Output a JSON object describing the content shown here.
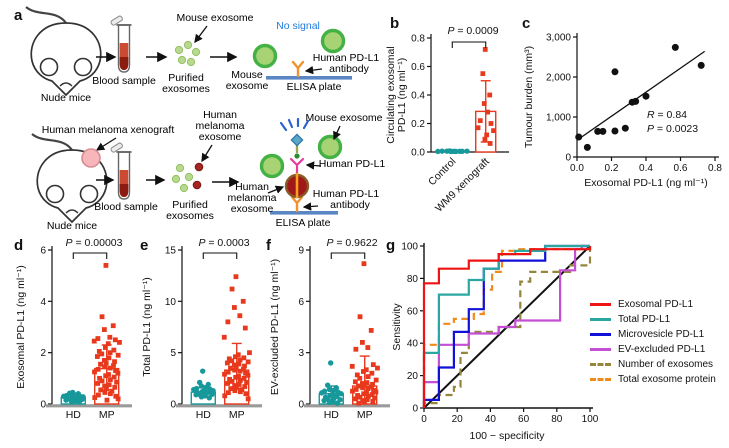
{
  "letters": {
    "a": "a",
    "b": "b",
    "c": "c",
    "d": "d",
    "e": "e",
    "f": "f",
    "g": "g"
  },
  "panel_a": {
    "r1_nude_mice": "Nude mice",
    "r1_blood": "Blood sample",
    "r1_purified_1": "Purified",
    "r1_purified_2": "exosomes",
    "r1_mouse_exo_ptr": "Mouse exosome",
    "r1_mouse_exo_1": "Mouse",
    "r1_mouse_exo_2": "exosome",
    "r1_no_signal": "No signal",
    "r1_ab_1": "Human PD-L1",
    "r1_ab_2": "antibody",
    "r1_elisa": "ELISA plate",
    "r2_xenograft": "Human melanoma xenograft",
    "r2_nude_mice": "Nude mice",
    "r2_blood": "Blood sample",
    "r2_purified_1": "Purified",
    "r2_purified_2": "exosomes",
    "r2_mel_ptr_1": "Human",
    "r2_mel_ptr_2": "melanoma",
    "r2_mel_ptr_3": "exosome",
    "r2_mouse_exo": "Mouse exosome",
    "r2_human_pdl1": "Human PD-L1",
    "r2_mel_1": "Human",
    "r2_mel_2": "melanoma",
    "r2_mel_3": "exosome",
    "r2_ab_1": "Human PD-L1",
    "r2_ab_2": "antibody",
    "r2_elisa": "ELISA plate",
    "colors": {
      "exosome_green_fill": "#a8d375",
      "exosome_green_ring": "#43b143",
      "small_exosome": "#b9da8e",
      "melanoma_exosome": "#a01818",
      "melanoma_ring": "#8a5a28",
      "tumor_pink": "#f6b6ba",
      "antibody_orange": "#f0922f",
      "antibody_pink": "#ea3b9a",
      "elisa_blue": "#5b86c4",
      "signal_blue": "#2a63cf",
      "no_signal_blue": "#1f7de0",
      "blood_red": "#cd4a32"
    }
  },
  "chart_data": [
    {
      "panel": "b",
      "type": "dot-bar",
      "p_label": "P = 0.0009",
      "ylabel_lines": [
        "Circulating exosomal",
        "PD-L1 (ng ml⁻¹)"
      ],
      "ylim": [
        0,
        0.8
      ],
      "yticks": [
        0,
        0.2,
        0.4,
        0.6,
        0.8
      ],
      "ytick_labels": [
        "0.0",
        "0.2",
        "0.4",
        "0.6",
        "0.8"
      ],
      "xtick_rotate": true,
      "groups": [
        {
          "label": "Control",
          "marker": "circle",
          "color": "#17989b",
          "bar": null,
          "values": [
            0.004,
            0.006,
            0.005,
            0.007,
            0.004,
            0.006,
            0.005,
            0.004,
            0.006,
            0.005,
            0.005
          ]
        },
        {
          "label": "WM9 xenograft",
          "marker": "square",
          "color": "#e8391d",
          "bar": 0.285,
          "err": [
            0.07,
            0.5
          ],
          "values": [
            0.72,
            0.55,
            0.4,
            0.34,
            0.28,
            0.22,
            0.2,
            0.17,
            0.15,
            0.12,
            0.09,
            0.06
          ]
        }
      ]
    },
    {
      "panel": "c",
      "type": "scatter",
      "xlabel": "Exosomal PD-L1 (ng ml⁻¹)",
      "ylabel": "Tumour burden (mm³)",
      "xlim": [
        0,
        0.8
      ],
      "ylim": [
        0,
        3000
      ],
      "xticks": [
        0,
        0.2,
        0.4,
        0.6,
        0.8
      ],
      "xtick_labels": [
        "0.0",
        "0.2",
        "0.4",
        "0.6",
        "0.8"
      ],
      "yticks": [
        0,
        1000,
        2000,
        3000
      ],
      "ytick_labels": [
        "0",
        "1,000",
        "2,000",
        "3,000"
      ],
      "points": [
        [
          0.01,
          500
        ],
        [
          0.06,
          240
        ],
        [
          0.12,
          640
        ],
        [
          0.15,
          640
        ],
        [
          0.22,
          650
        ],
        [
          0.22,
          2130
        ],
        [
          0.28,
          720
        ],
        [
          0.32,
          1370
        ],
        [
          0.34,
          1390
        ],
        [
          0.4,
          1520
        ],
        [
          0.57,
          2740
        ],
        [
          0.72,
          2290
        ]
      ],
      "fit_line": {
        "x1": 0.01,
        "y1": 450,
        "x2": 0.74,
        "y2": 2640
      },
      "r_label": "R = 0.84",
      "p_label": "P = 0.0023"
    },
    {
      "panel": "d",
      "type": "dot-bar",
      "p_label": "P = 0.00003",
      "ylabel_lines": [
        "Exosomal PD-L1 (ng ml⁻¹)"
      ],
      "ylim": [
        0,
        6
      ],
      "yticks": [
        0,
        2,
        4,
        6
      ],
      "ytick_labels": [
        "0",
        "2",
        "4",
        "6"
      ],
      "groups": [
        {
          "label": "HD",
          "marker": "circle",
          "color": "#17989b",
          "bar": 0.25,
          "err": [
            0.15,
            0.38
          ],
          "values": [
            0.45,
            0.42,
            0.4,
            0.38,
            0.35,
            0.33,
            0.3,
            0.3,
            0.28,
            0.27,
            0.25,
            0.25,
            0.22,
            0.2,
            0.2,
            0.18,
            0.15,
            0.12,
            0.1,
            0.08
          ]
        },
        {
          "label": "MP",
          "marker": "square",
          "color": "#e8391d",
          "bar": 1.38,
          "err": [
            0.55,
            2.3
          ],
          "values": [
            5.4,
            3.4,
            3.05,
            2.9,
            2.6,
            2.55,
            2.5,
            2.45,
            2.4,
            2.35,
            2.2,
            2.1,
            2.05,
            2.0,
            1.95,
            1.9,
            1.85,
            1.8,
            1.7,
            1.65,
            1.6,
            1.55,
            1.5,
            1.45,
            1.4,
            1.35,
            1.3,
            1.25,
            1.2,
            1.15,
            1.1,
            1.05,
            1.0,
            0.95,
            0.9,
            0.85,
            0.8,
            0.75,
            0.7,
            0.65,
            0.6,
            0.55,
            0.5,
            0.45,
            0.4,
            0.35,
            0.3,
            0.25,
            0.2,
            0.15
          ]
        }
      ]
    },
    {
      "panel": "e",
      "type": "dot-bar",
      "p_label": "P = 0.0003",
      "ylabel_lines": [
        "Total PD-L1 (ng ml⁻¹)"
      ],
      "ylim": [
        0,
        15
      ],
      "yticks": [
        0,
        5,
        10,
        15
      ],
      "ytick_labels": [
        "0",
        "5",
        "10",
        "15"
      ],
      "groups": [
        {
          "label": "HD",
          "marker": "circle",
          "color": "#17989b",
          "bar": 1.15,
          "err": [
            0.75,
            1.6
          ],
          "values": [
            3.2,
            2.1,
            1.9,
            1.75,
            1.6,
            1.5,
            1.45,
            1.4,
            1.3,
            1.25,
            1.2,
            1.15,
            1.1,
            1.05,
            1.0,
            0.95,
            0.9,
            0.8,
            0.7,
            0.6
          ]
        },
        {
          "label": "MP",
          "marker": "square",
          "color": "#e8391d",
          "bar": 3.3,
          "err": [
            1.5,
            5.9
          ],
          "values": [
            12.4,
            11.2,
            10.0,
            9.4,
            8.6,
            8.0,
            7.4,
            6.5,
            5.0,
            4.8,
            4.6,
            4.5,
            4.4,
            4.3,
            4.2,
            4.1,
            4.0,
            3.9,
            3.8,
            3.7,
            3.6,
            3.5,
            3.4,
            3.3,
            3.2,
            3.1,
            3.0,
            2.9,
            2.8,
            2.7,
            2.6,
            2.5,
            2.4,
            2.3,
            2.2,
            2.1,
            2.0,
            1.9,
            1.8,
            1.7,
            1.6,
            1.5,
            1.4,
            1.3,
            1.2,
            1.1,
            1.0,
            0.8,
            0.5
          ]
        }
      ]
    },
    {
      "panel": "f",
      "type": "dot-bar",
      "p_label": "P = 0.9622",
      "ylabel_lines": [
        "EV-excluded PD-L1 (ng ml⁻¹)"
      ],
      "ylim": [
        0,
        9
      ],
      "yticks": [
        0,
        3,
        6,
        9
      ],
      "ytick_labels": [
        "0",
        "3",
        "6",
        "9"
      ],
      "groups": [
        {
          "label": "HD",
          "marker": "circle",
          "color": "#17989b",
          "bar": 0.6,
          "err": [
            0.25,
            1.05
          ],
          "values": [
            2.4,
            1.1,
            0.95,
            0.85,
            0.8,
            0.75,
            0.7,
            0.65,
            0.6,
            0.55,
            0.5,
            0.45,
            0.4,
            0.35,
            0.3,
            0.25,
            0.2,
            0.15,
            0.1,
            0.05
          ]
        },
        {
          "label": "MP",
          "marker": "square",
          "color": "#e8391d",
          "bar": 1.05,
          "err": [
            0.3,
            2.8
          ],
          "values": [
            8.2,
            5.1,
            4.3,
            3.6,
            3.3,
            3.2,
            2.3,
            2.2,
            2.1,
            2.0,
            1.9,
            1.8,
            1.7,
            1.6,
            1.5,
            1.4,
            1.3,
            1.25,
            1.2,
            1.15,
            1.1,
            1.05,
            1.0,
            0.95,
            0.9,
            0.85,
            0.8,
            0.75,
            0.7,
            0.65,
            0.6,
            0.55,
            0.5,
            0.45,
            0.4,
            0.35,
            0.3,
            0.25,
            0.2,
            0.15,
            0.1,
            0.05
          ]
        }
      ]
    },
    {
      "panel": "g",
      "type": "roc",
      "xlabel": "100 − specificity",
      "ylabel": "Sensitivity",
      "ticks": [
        0,
        20,
        40,
        60,
        80,
        100
      ],
      "tick_labels": [
        "0",
        "20",
        "40",
        "60",
        "80",
        "100"
      ],
      "diagonal": true,
      "series": [
        {
          "name": "Exosomal PD-L1",
          "color": "#ee1414",
          "dashed": false,
          "points": [
            [
              0,
              0
            ],
            [
              0,
              77
            ],
            [
              9,
              77
            ],
            [
              9,
              86
            ],
            [
              27,
              86
            ],
            [
              27,
              91
            ],
            [
              45,
              91
            ],
            [
              45,
              95
            ],
            [
              64,
              95
            ],
            [
              64,
              98
            ],
            [
              100,
              98
            ],
            [
              100,
              100
            ]
          ]
        },
        {
          "name": "Total PD-L1",
          "color": "#2aa7a0",
          "dashed": false,
          "points": [
            [
              0,
              0
            ],
            [
              0,
              34
            ],
            [
              9,
              34
            ],
            [
              9,
              70
            ],
            [
              27,
              70
            ],
            [
              27,
              79
            ],
            [
              36,
              79
            ],
            [
              36,
              86
            ],
            [
              45,
              86
            ],
            [
              45,
              95
            ],
            [
              55,
              95
            ],
            [
              55,
              97
            ],
            [
              73,
              97
            ],
            [
              73,
              100
            ],
            [
              100,
              100
            ]
          ]
        },
        {
          "name": "Microvesicle PD-L1",
          "color": "#1010d8",
          "dashed": false,
          "points": [
            [
              0,
              0
            ],
            [
              0,
              5
            ],
            [
              9,
              5
            ],
            [
              9,
              25
            ],
            [
              18,
              25
            ],
            [
              18,
              47
            ],
            [
              27,
              47
            ],
            [
              27,
              61
            ],
            [
              36,
              61
            ],
            [
              36,
              86
            ],
            [
              45,
              86
            ],
            [
              45,
              91
            ],
            [
              73,
              91
            ],
            [
              73,
              100
            ],
            [
              100,
              100
            ]
          ]
        },
        {
          "name": "EV-excluded PD-L1",
          "color": "#c44fd4",
          "dashed": false,
          "points": [
            [
              0,
              0
            ],
            [
              0,
              16
            ],
            [
              9,
              16
            ],
            [
              9,
              39
            ],
            [
              27,
              39
            ],
            [
              27,
              46
            ],
            [
              45,
              46
            ],
            [
              45,
              50
            ],
            [
              55,
              50
            ],
            [
              55,
              54
            ],
            [
              82,
              54
            ],
            [
              82,
              85
            ],
            [
              91,
              85
            ],
            [
              91,
              98
            ],
            [
              95,
              98
            ],
            [
              95,
              100
            ],
            [
              100,
              100
            ]
          ]
        },
        {
          "name": "Number of exosomes",
          "color": "#94863d",
          "dashed": true,
          "points": [
            [
              0,
              0
            ],
            [
              0,
              3
            ],
            [
              9,
              3
            ],
            [
              9,
              8
            ],
            [
              18,
              8
            ],
            [
              18,
              13
            ],
            [
              22,
              13
            ],
            [
              22,
              34
            ],
            [
              27,
              34
            ],
            [
              27,
              47
            ],
            [
              45,
              47
            ],
            [
              45,
              50
            ],
            [
              58,
              50
            ],
            [
              58,
              78
            ],
            [
              64,
              78
            ],
            [
              64,
              84
            ],
            [
              88,
              84
            ],
            [
              88,
              88
            ],
            [
              100,
              88
            ],
            [
              100,
              100
            ]
          ]
        },
        {
          "name": "Total exosome protein",
          "color": "#f08a1d",
          "dashed": true,
          "points": [
            [
              0,
              0
            ],
            [
              0,
              39
            ],
            [
              9,
              39
            ],
            [
              9,
              52
            ],
            [
              18,
              52
            ],
            [
              18,
              55
            ],
            [
              30,
              55
            ],
            [
              30,
              58
            ],
            [
              36,
              58
            ],
            [
              36,
              73
            ],
            [
              41,
              73
            ],
            [
              41,
              84
            ],
            [
              47,
              84
            ],
            [
              47,
              97
            ],
            [
              55,
              97
            ],
            [
              55,
              98
            ],
            [
              100,
              98
            ],
            [
              100,
              100
            ]
          ]
        }
      ],
      "legend": [
        "Exosomal PD-L1",
        "Total PD-L1",
        "Microvesicle PD-L1",
        "EV-excluded PD-L1",
        "Number of exosomes",
        "Total exosome protein"
      ]
    }
  ]
}
